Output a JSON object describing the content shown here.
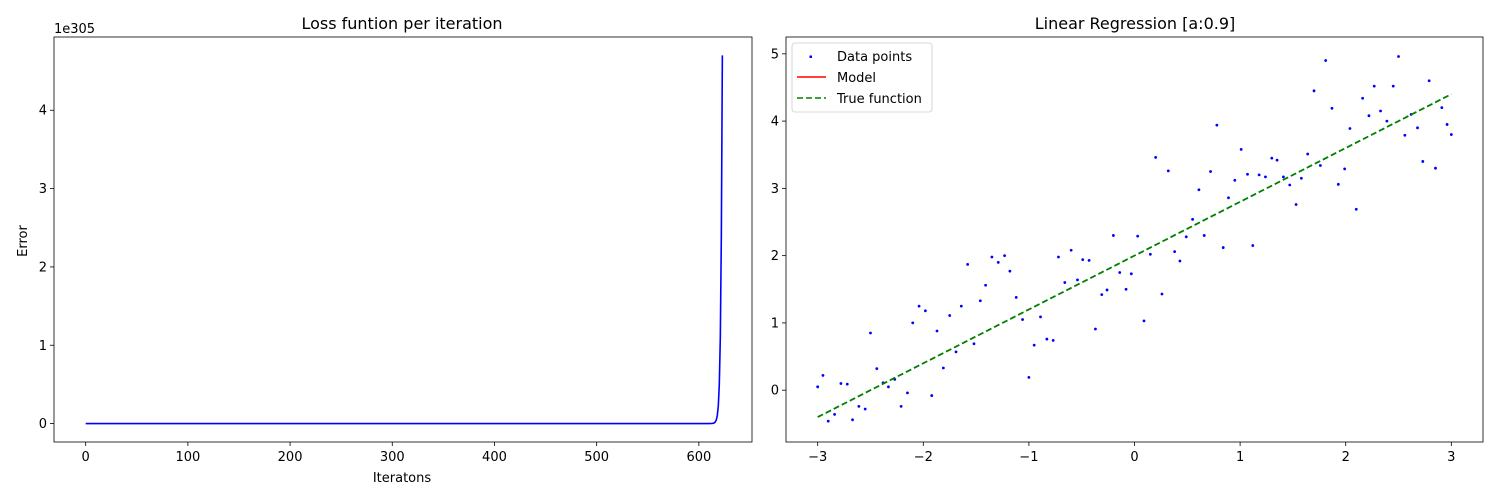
{
  "colors": {
    "loss_line": "#0000ff",
    "data_points": "#0000ff",
    "model_line": "#ff0000",
    "true_function": "#008000"
  },
  "chart_data": [
    {
      "type": "line",
      "title": "Loss funtion per iteration",
      "xlabel": "Iteratons",
      "ylabel": "Error",
      "y_offset_text": "1e305",
      "xlim": [
        -31,
        652
      ],
      "ylim": [
        -0.235,
        4.935
      ],
      "x_ticks": [
        0,
        100,
        200,
        300,
        400,
        500,
        600
      ],
      "y_ticks": [
        0,
        1,
        2,
        3,
        4
      ],
      "grid": false,
      "series": [
        {
          "x": [
            0,
            100,
            200,
            300,
            400,
            500,
            600,
            610,
            612,
            614,
            615,
            616,
            617,
            618,
            619,
            620,
            621,
            622,
            623
          ],
          "y": [
            0,
            0,
            0,
            0,
            0,
            0,
            0,
            0.0002,
            0.001,
            0.004,
            0.009,
            0.02,
            0.045,
            0.1,
            0.22,
            0.5,
            1.1,
            2.4,
            4.7
          ]
        }
      ]
    },
    {
      "type": "scatter",
      "title": "Linear Regression [a:0.9]",
      "xlabel": "",
      "ylabel": "",
      "xlim": [
        -3.3,
        3.3
      ],
      "ylim": [
        -0.77,
        5.25
      ],
      "x_ticks": [
        -3,
        -2,
        -1,
        0,
        1,
        2,
        3
      ],
      "y_ticks": [
        0,
        1,
        2,
        3,
        4,
        5
      ],
      "grid": false,
      "legend_position": "top-left",
      "legend": [
        "Data points",
        "Model",
        "True function"
      ],
      "series": [
        {
          "name": "Data points",
          "kind": "scatter",
          "x": [
            -3.0,
            -2.95,
            -2.9,
            -2.84,
            -2.78,
            -2.72,
            -2.67,
            -2.61,
            -2.55,
            -2.5,
            -2.44,
            -2.38,
            -2.33,
            -2.27,
            -2.21,
            -2.15,
            -2.1,
            -2.04,
            -1.98,
            -1.92,
            -1.87,
            -1.81,
            -1.75,
            -1.69,
            -1.64,
            -1.58,
            -1.52,
            -1.46,
            -1.41,
            -1.35,
            -1.29,
            -1.23,
            -1.18,
            -1.12,
            -1.06,
            -1.0,
            -0.95,
            -0.89,
            -0.83,
            -0.77,
            -0.72,
            -0.66,
            -0.6,
            -0.54,
            -0.49,
            -0.43,
            -0.37,
            -0.31,
            -0.26,
            -0.2,
            -0.14,
            -0.08,
            -0.03,
            0.03,
            0.09,
            0.15,
            0.2,
            0.26,
            0.32,
            0.38,
            0.43,
            0.49,
            0.55,
            0.61,
            0.66,
            0.72,
            0.78,
            0.84,
            0.89,
            0.95,
            1.01,
            1.07,
            1.12,
            1.18,
            1.24,
            1.3,
            1.35,
            1.41,
            1.47,
            1.53,
            1.58,
            1.64,
            1.7,
            1.76,
            1.81,
            1.87,
            1.93,
            1.99,
            2.04,
            2.1,
            2.16,
            2.22,
            2.27,
            2.33,
            2.39,
            2.45,
            2.5,
            2.56,
            2.62,
            2.68,
            2.73,
            2.79,
            2.85,
            2.91,
            2.96,
            3.0
          ],
          "y": [
            0.05,
            0.22,
            -0.46,
            -0.36,
            0.1,
            0.09,
            -0.44,
            -0.24,
            -0.28,
            0.85,
            0.32,
            0.11,
            0.05,
            0.16,
            -0.24,
            -0.04,
            1.0,
            1.25,
            1.18,
            -0.08,
            0.88,
            0.33,
            1.11,
            0.57,
            1.25,
            1.87,
            0.69,
            1.33,
            1.56,
            1.98,
            1.9,
            2.0,
            1.77,
            1.38,
            1.05,
            0.19,
            0.67,
            1.09,
            0.76,
            0.74,
            1.98,
            1.6,
            2.08,
            1.64,
            1.94,
            1.93,
            0.91,
            1.42,
            1.49,
            2.3,
            1.75,
            1.5,
            1.73,
            2.29,
            1.03,
            2.02,
            3.46,
            1.43,
            3.26,
            2.06,
            1.92,
            2.28,
            2.54,
            2.98,
            2.3,
            3.25,
            3.94,
            2.12,
            2.86,
            3.12,
            3.58,
            3.21,
            2.15,
            3.2,
            3.17,
            3.45,
            3.42,
            3.17,
            3.05,
            2.76,
            3.15,
            3.51,
            4.45,
            3.34,
            4.9,
            4.19,
            3.06,
            3.29,
            3.89,
            2.69,
            4.34,
            4.08,
            4.52,
            4.15,
            4.0,
            4.52,
            4.96,
            3.79,
            4.1,
            3.9,
            3.4,
            4.6,
            3.3,
            4.2,
            3.95,
            3.8
          ]
        },
        {
          "name": "Model",
          "kind": "line",
          "x": [],
          "y": []
        },
        {
          "name": "True function",
          "kind": "dashed-line",
          "x": [
            -3,
            3
          ],
          "y": [
            -0.4,
            4.4
          ]
        }
      ]
    }
  ]
}
